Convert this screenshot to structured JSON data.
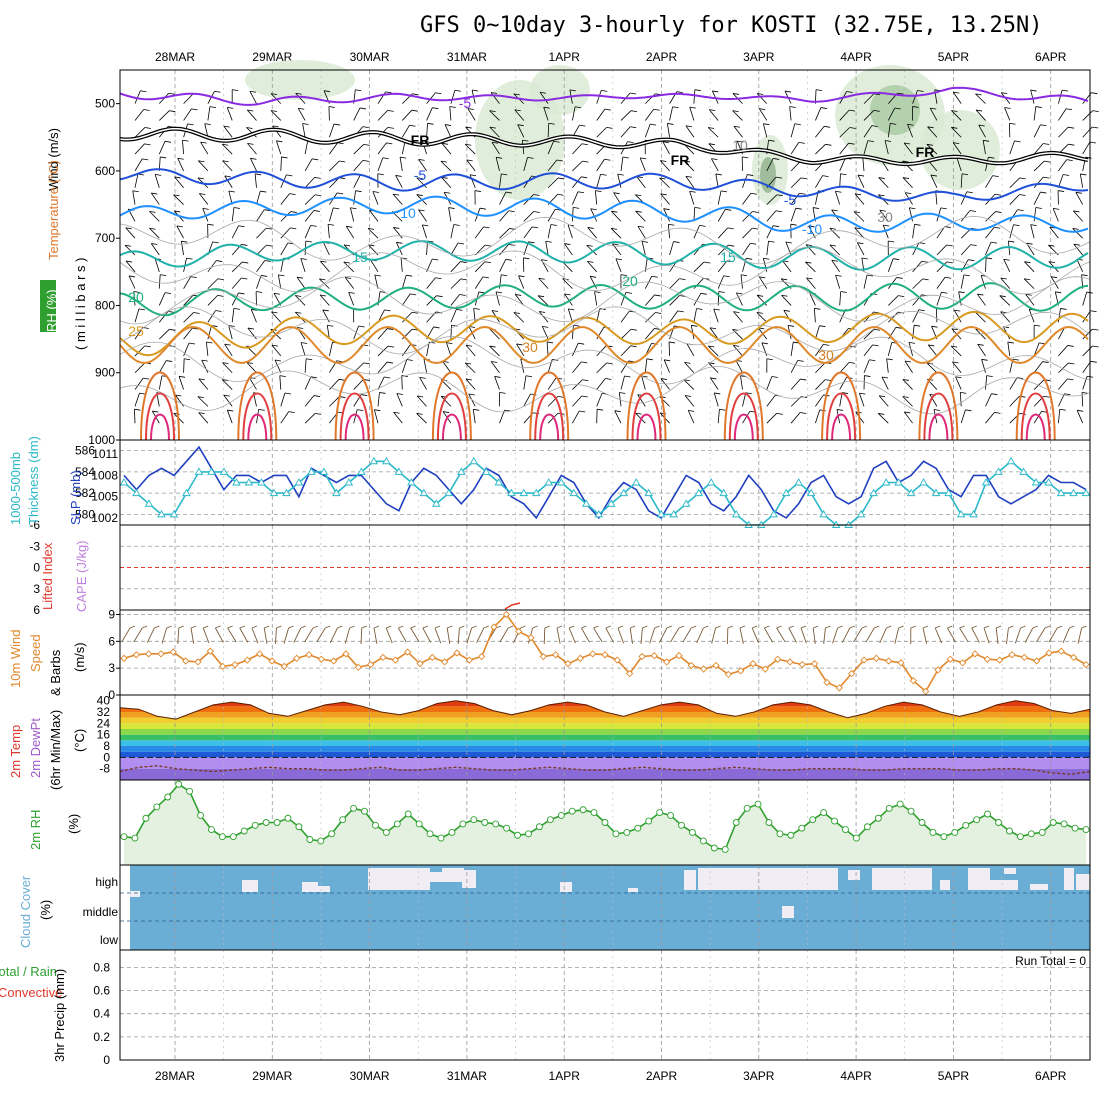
{
  "title": "GFS 0~10day 3-hourly for KOSTI (32.75E, 13.25N)",
  "colors": {
    "rh_green": "#2fa02f",
    "dewpt_purple": "#a05ac8",
    "precip_red": "#e0392c",
    "cloud_blue": "#6aaed6",
    "temp_orange": "#e0882c",
    "thick_cyan": "#2ab8c8",
    "slp_blue": "#1f3fbf"
  },
  "chart_data": [
    {
      "id": "upper_air",
      "type": "contour",
      "ylabel": [
        "Wind (m/s)",
        "Temperature (°C)",
        "RH (%)",
        "(millibars)"
      ],
      "ylabel_parts": {
        "wind": "Wind (m/s)",
        "temp": "Temperature (°C)",
        "rh": "RH (%)",
        "mb": "( m i l l i b a r s )"
      },
      "yticks": [
        500,
        600,
        700,
        800,
        900,
        1000
      ],
      "ylim": [
        450,
        1000
      ],
      "freezing_label": "FR",
      "contours": [
        {
          "value": -5,
          "color": "#8a2be2",
          "levels_mb": [
            485,
            497,
            490,
            492,
            488,
            494,
            480,
            497
          ]
        },
        {
          "value": 0,
          "color": "#000000",
          "levels_mb": [
            545,
            547,
            552,
            555,
            560,
            583,
            585,
            578
          ]
        },
        {
          "value": 5,
          "color": "#2050d8",
          "levels_mb": [
            605,
            612,
            618,
            615,
            615,
            630,
            640,
            620
          ]
        },
        {
          "value": 10,
          "color": "#1e90ff",
          "levels_mb": [
            665,
            655,
            650,
            655,
            660,
            680,
            675,
            680
          ]
        },
        {
          "value": 15,
          "color": "#20b2aa",
          "levels_mb": [
            735,
            720,
            718,
            720,
            723,
            730,
            730,
            728
          ]
        },
        {
          "value": 20,
          "color": "#20b080",
          "levels_mb": [
            800,
            790,
            790,
            785,
            788,
            790,
            785,
            790
          ]
        },
        {
          "value": 25,
          "color": "#d89a20",
          "levels_mb": [
            855,
            840,
            835,
            835,
            840,
            835,
            830,
            835
          ]
        }
      ],
      "contour_labels": [
        "-5",
        "FR",
        "FR",
        "FR",
        "-5",
        "-5",
        "10",
        "-10",
        "15",
        "15",
        "20",
        "20",
        "25",
        "30",
        "30",
        "10",
        "30"
      ]
    },
    {
      "id": "thickness_slp",
      "type": "line",
      "ylabel_left": "1000-500mb Thickness (dm)",
      "ylabel_right": "SLP (mb)",
      "ylabel_parts": {
        "thick1": "1000-500mb",
        "thick2": "Thickness (dm)",
        "slp": "SLP (mb)"
      },
      "left_ticks": [
        586,
        584,
        582,
        580
      ],
      "left_lim": [
        579,
        587
      ],
      "right_ticks": [
        1011,
        1008,
        1005,
        1002
      ],
      "right_lim": [
        1001,
        1013
      ],
      "series": [
        {
          "name": "SLP (mb)",
          "color": "#1f3fbf",
          "values": [
            1008,
            1006,
            1008,
            1009,
            1008,
            1010,
            1012,
            1009,
            1006,
            1008,
            1008,
            1007,
            1008,
            1008,
            1005,
            1009,
            1008,
            1007,
            1008,
            1008,
            1006,
            1004,
            1003,
            1007,
            1009,
            1008,
            1006,
            1004,
            1006,
            1009,
            1008,
            1005,
            1004,
            1002,
            1005,
            1008,
            1007,
            1004,
            1002,
            1005,
            1007,
            1006,
            1003,
            1002,
            1005,
            1008,
            1007,
            1004,
            1003,
            1005,
            1008,
            1006,
            1003,
            1002,
            1004,
            1007,
            1008,
            1005,
            1004,
            1005,
            1009,
            1010,
            1007,
            1008,
            1010,
            1009,
            1006,
            1005,
            1008,
            1008,
            1005,
            1004,
            1005,
            1006,
            1008,
            1007,
            1007,
            1006
          ]
        },
        {
          "name": "1000-500mb Thickness (dm)",
          "color": "#2ab8c8",
          "values": [
            583,
            582,
            581,
            580,
            580,
            582,
            584,
            584,
            584,
            583,
            583,
            583,
            582,
            582,
            583,
            584,
            584,
            582,
            583,
            584,
            585,
            585,
            584,
            583,
            582,
            581,
            582,
            584,
            585,
            584,
            583,
            582,
            582,
            582,
            583,
            583,
            582,
            581,
            580,
            581,
            582,
            583,
            582,
            580,
            580,
            581,
            582,
            583,
            582,
            580,
            579,
            579,
            580,
            582,
            583,
            582,
            580,
            579,
            579,
            580,
            582,
            583,
            583,
            582,
            583,
            582,
            582,
            580,
            580,
            583,
            584,
            585,
            584,
            583,
            583,
            582,
            582,
            582
          ]
        }
      ]
    },
    {
      "id": "li_cape",
      "type": "line",
      "ylabel_left": "Lifted Index",
      "ylabel_right": "CAPE (J/kg)",
      "left_ticks": [
        "-6",
        "-3",
        "0",
        "3",
        "6"
      ],
      "left_lim": [
        -6,
        6
      ],
      "cape_values_shown": [
        {
          "x_index": 31,
          "value": 6
        }
      ]
    },
    {
      "id": "wind10m",
      "type": "line",
      "ylabel": [
        "10m Wind",
        "Speed",
        "& Barbs",
        "(m/s)"
      ],
      "yticks": [
        0,
        3,
        6,
        9
      ],
      "ylim": [
        0,
        9.5
      ],
      "series": [
        {
          "name": "10m Wind Speed (m/s)",
          "color": "#e0882c",
          "values": [
            4.1,
            4.5,
            4.6,
            4.6,
            4.8,
            3.8,
            3.7,
            4.9,
            3.2,
            3.4,
            3.9,
            4.6,
            3.8,
            3.2,
            4.1,
            4.5,
            4.0,
            3.8,
            4.6,
            3.1,
            3.4,
            4.2,
            3.9,
            4.8,
            3.5,
            4.2,
            3.7,
            4.7,
            3.9,
            4.3,
            7.6,
            9.0,
            7.1,
            6.4,
            4.3,
            4.5,
            3.5,
            4.1,
            4.6,
            4.5,
            3.9,
            2.4,
            4.3,
            4.4,
            3.7,
            4.4,
            3.3,
            2.9,
            3.3,
            2.3,
            2.7,
            3.5,
            2.9,
            4.0,
            3.7,
            3.4,
            3.5,
            1.4,
            0.8,
            2.4,
            3.9,
            4.1,
            3.8,
            3.6,
            1.6,
            0.4,
            2.8,
            4.0,
            3.6,
            4.6,
            4.0,
            3.9,
            4.5,
            4.2,
            3.8,
            4.7,
            4.9,
            4.2,
            3.4
          ]
        }
      ]
    },
    {
      "id": "temp2m",
      "type": "area",
      "ylabel": [
        "2m Temp",
        "2m DewPt",
        "(6hr Min/Max)",
        "(°C)"
      ],
      "yticks": [
        "40",
        "32",
        "24",
        "16",
        "8",
        "0",
        "-8"
      ],
      "ylim": [
        -16,
        44
      ],
      "series": [
        {
          "name": "2m Temp (°C)",
          "color": "#d02000",
          "values": [
            35,
            34,
            29,
            27,
            32,
            37,
            39,
            37,
            31,
            29,
            33,
            37,
            39,
            36,
            32,
            30,
            33,
            38,
            40,
            38,
            33,
            30,
            33,
            37,
            39,
            37,
            32,
            29,
            33,
            37,
            39,
            37,
            31,
            29,
            32,
            37,
            39,
            37,
            32,
            28,
            31,
            36,
            39,
            37,
            32,
            29,
            32,
            37,
            40,
            38,
            33,
            31,
            34
          ]
        },
        {
          "name": "2m DewPt (°C)",
          "color": "#a05ac8",
          "values": [
            -10,
            -7,
            -6,
            -8,
            -9,
            -10,
            -9,
            -8,
            -7,
            -8,
            -8,
            -9,
            -9,
            -8,
            -7,
            -9,
            -9,
            -8,
            -7,
            -8,
            -9,
            -9,
            -8,
            -7,
            -8,
            -9,
            -9,
            -8,
            -7,
            -8,
            -9,
            -9,
            -8,
            -7,
            -8,
            -9,
            -9,
            -8,
            -8,
            -8,
            -9,
            -9,
            -8,
            -8,
            -8,
            -9,
            -9,
            -8,
            -8,
            -9,
            -11,
            -12,
            -10
          ]
        }
      ]
    },
    {
      "id": "rh2m",
      "type": "line",
      "ylabel": [
        "2m RH",
        "(%)"
      ],
      "ylim": [
        0,
        60
      ],
      "series": [
        {
          "name": "2m RH (%)",
          "color": "#2fa02f",
          "values": [
            20,
            19,
            33,
            41,
            48,
            57,
            52,
            35,
            25,
            20,
            20,
            24,
            28,
            30,
            30,
            33,
            27,
            18,
            17,
            22,
            32,
            40,
            38,
            28,
            23,
            29,
            36,
            29,
            22,
            19,
            23,
            29,
            32,
            30,
            29,
            26,
            21,
            22,
            27,
            32,
            35,
            38,
            39,
            37,
            30,
            22,
            23,
            26,
            31,
            37,
            35,
            28,
            23,
            17,
            12,
            11,
            30,
            40,
            43,
            30,
            22,
            21,
            26,
            32,
            37,
            31,
            25,
            19,
            27,
            33,
            40,
            43,
            38,
            30,
            23,
            20,
            23,
            28,
            32,
            36,
            30,
            24,
            20,
            22,
            23,
            30,
            29,
            26,
            25
          ]
        }
      ]
    },
    {
      "id": "cloud",
      "type": "bar",
      "ylabel": [
        "Cloud Cover",
        "(%)"
      ],
      "layer_labels": [
        "high",
        "middle",
        "low"
      ]
    },
    {
      "id": "precip",
      "type": "bar",
      "ylabel_left": [
        "Total / Rain",
        "Convective"
      ],
      "ylabel": "3hr Precip (mm)",
      "yticks": [
        "0.8",
        "0.6",
        "0.4",
        "0.2",
        "0"
      ],
      "ylim": [
        0,
        0.95
      ],
      "run_total_label": "Run Total = 0",
      "values": []
    }
  ],
  "dates": [
    "28MAR",
    "29MAR",
    "30MAR",
    "31MAR",
    "1APR",
    "2APR",
    "3APR",
    "4APR",
    "5APR",
    "6APR"
  ]
}
